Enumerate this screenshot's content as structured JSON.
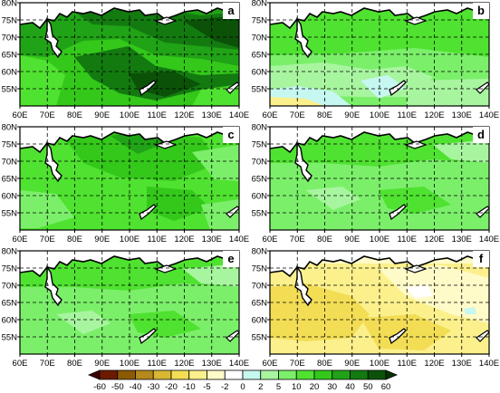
{
  "figure": {
    "lat_labels": [
      "80N",
      "75N",
      "70N",
      "65N",
      "60N",
      "55N"
    ],
    "lon_labels": [
      "60E",
      "70E",
      "80E",
      "90E",
      "100E",
      "110E",
      "120E",
      "130E",
      "140E"
    ],
    "lon_range": [
      60,
      140
    ],
    "lat_range": [
      50,
      80
    ],
    "panels": [
      {
        "label": "a",
        "theme": "strong-positive"
      },
      {
        "label": "b",
        "theme": "moderate-positive-south-light"
      },
      {
        "label": "c",
        "theme": "moderate-positive"
      },
      {
        "label": "d",
        "theme": "weak-positive"
      },
      {
        "label": "e",
        "theme": "weak-positive"
      },
      {
        "label": "f",
        "theme": "negative"
      }
    ]
  },
  "colorbar": {
    "labels": [
      "-60",
      "-50",
      "-40",
      "-30",
      "-20",
      "-10",
      "-5",
      "-2",
      "0",
      "2",
      "5",
      "10",
      "20",
      "30",
      "40",
      "50",
      "60"
    ],
    "colors": [
      "#3d0000",
      "#6b1a00",
      "#8c5a00",
      "#b5891a",
      "#d9b733",
      "#f2dd55",
      "#fbf08c",
      "#fffbc8",
      "#ffffff",
      "#c6f7f0",
      "#a8f5a0",
      "#7bef6a",
      "#4fe230",
      "#33c81a",
      "#20a316",
      "#137a10",
      "#0b5208",
      "#053305"
    ]
  }
}
